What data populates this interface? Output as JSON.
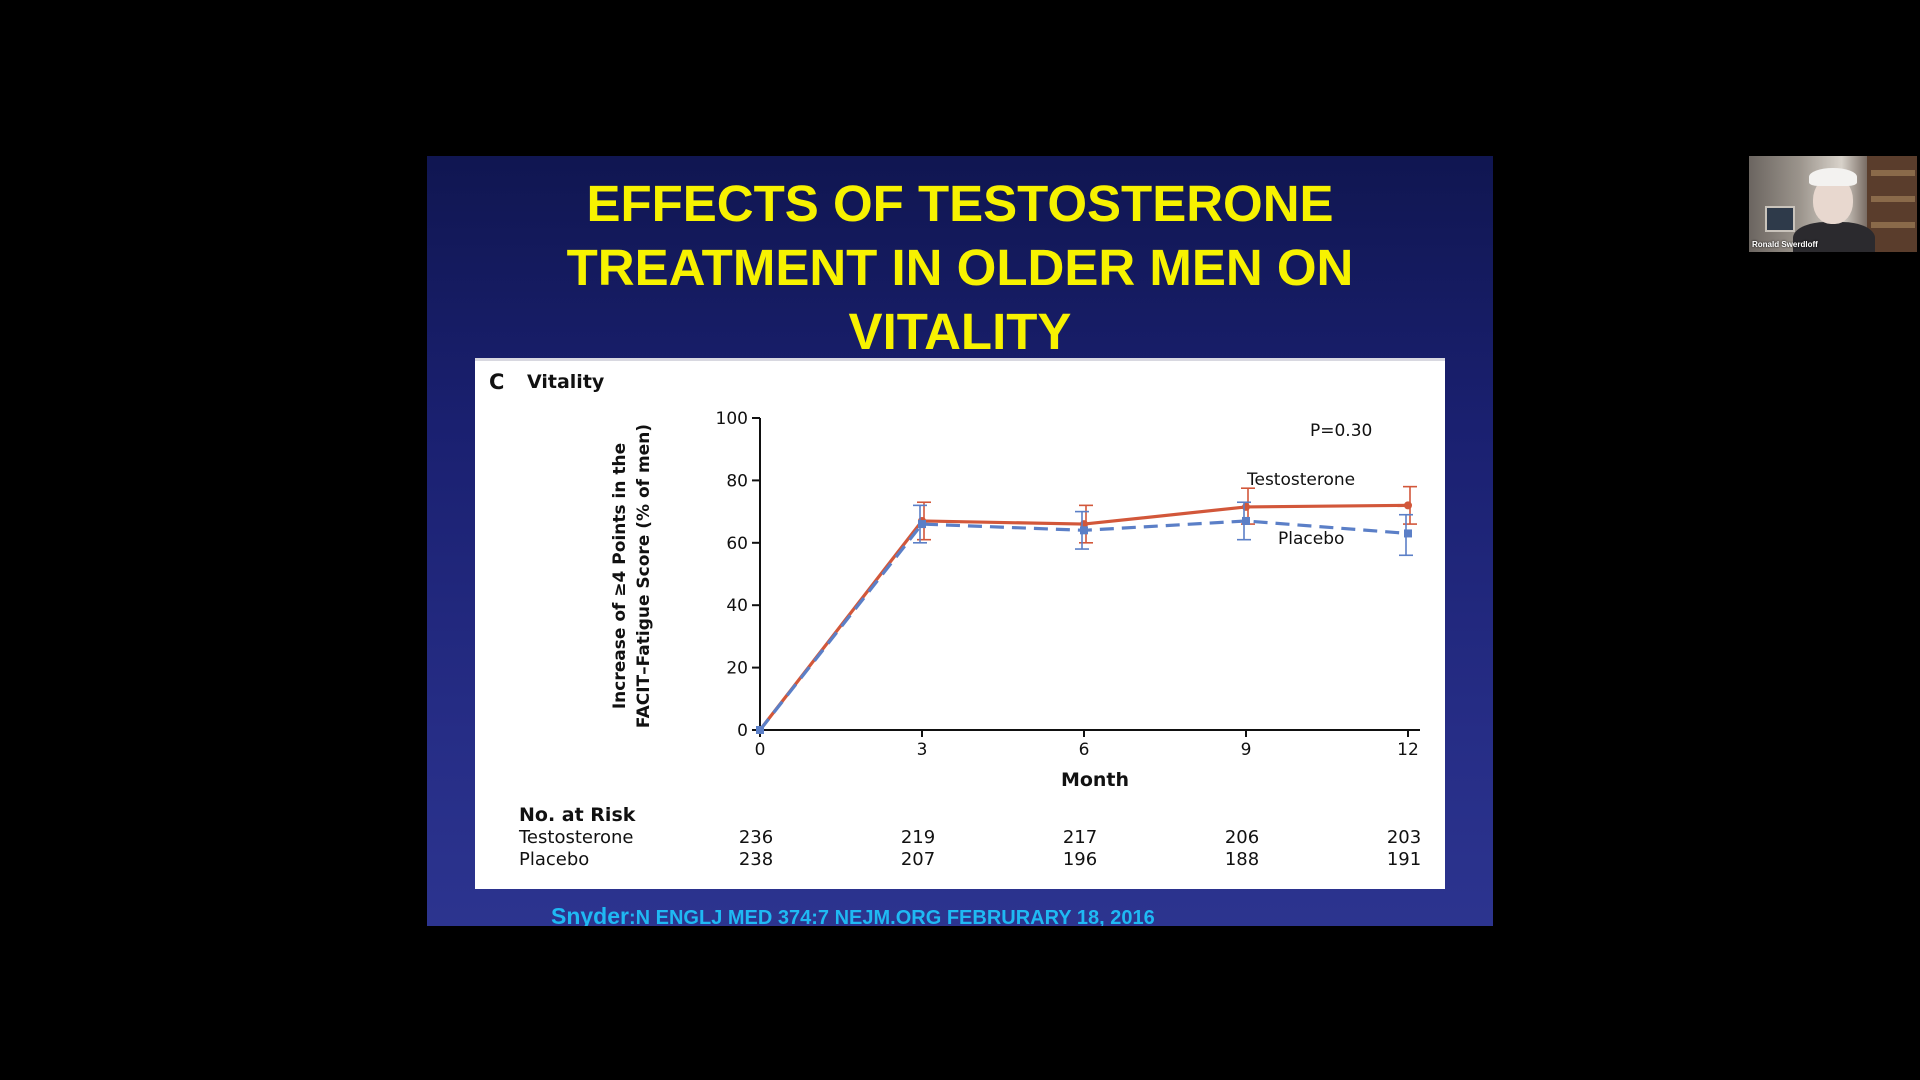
{
  "slide": {
    "title_lines": [
      "EFFECTS OF TESTOSTERONE",
      "TREATMENT IN OLDER MEN ON",
      "VITALITY"
    ],
    "citation_author": "Snyder",
    "citation_ref": ":N ENGLJ MED 374:7 NEJM.ORG FEBRURARY 18, 2016"
  },
  "figure": {
    "panel_letter": "C",
    "panel_title": "Vitality",
    "p_value": "P=0.30",
    "risk_table": {
      "header": "No. at Risk",
      "rows": [
        {
          "label": "Testosterone",
          "values": [
            "236",
            "219",
            "217",
            "206",
            "203"
          ]
        },
        {
          "label": "Placebo",
          "values": [
            "238",
            "207",
            "196",
            "188",
            "191"
          ]
        }
      ]
    }
  },
  "chart_data": {
    "type": "line",
    "title": "Vitality",
    "xlabel": "Month",
    "ylabel_lines": [
      "Increase of ≥4 Points in the",
      "FACIT–Fatigue Score (% of men)"
    ],
    "x": [
      0,
      3,
      6,
      9,
      12
    ],
    "xticks": [
      "0",
      "3",
      "6",
      "9",
      "12"
    ],
    "yticks": [
      "0",
      "20",
      "40",
      "60",
      "80",
      "100"
    ],
    "ylim": [
      0,
      100
    ],
    "xlim": [
      0,
      12
    ],
    "series": [
      {
        "name": "Testosterone",
        "color": "#d2573a",
        "style": "solid",
        "values": [
          0,
          67,
          66,
          71.5,
          72
        ],
        "err_low": [
          0,
          61,
          60,
          66,
          66
        ],
        "err_high": [
          0,
          73,
          72,
          77.5,
          78
        ]
      },
      {
        "name": "Placebo",
        "color": "#5b7fc7",
        "style": "dashed",
        "values": [
          0,
          66,
          64,
          67,
          63
        ],
        "err_low": [
          0,
          60,
          58,
          61,
          56
        ],
        "err_high": [
          0,
          72,
          70,
          73,
          69
        ]
      }
    ],
    "annotation": "P=0.30",
    "grid": false,
    "legend": "inline labels"
  },
  "webcam": {
    "name": "Ronald Swerdloff"
  }
}
